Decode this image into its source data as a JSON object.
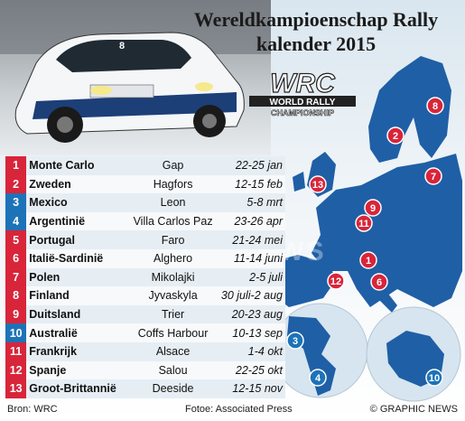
{
  "title": {
    "line1": "Wereldkampioenschap Rally",
    "line2": "kalender 2015"
  },
  "logo": {
    "wrc": "WRC",
    "line1": "WORLD RALLY",
    "line2": "CHAMPIONSHIP"
  },
  "photo": {
    "number": "8"
  },
  "rallies": [
    {
      "num": "1",
      "country": "Monte Carlo",
      "venue": "Gap",
      "dates": "22-25 jan"
    },
    {
      "num": "2",
      "country": "Zweden",
      "venue": "Hagfors",
      "dates": "12-15 feb"
    },
    {
      "num": "3",
      "country": "Mexico",
      "venue": "Leon",
      "dates": "5-8 mrt"
    },
    {
      "num": "4",
      "country": "Argentinië",
      "venue": "Villa Carlos Paz",
      "dates": "23-26 apr"
    },
    {
      "num": "5",
      "country": "Portugal",
      "venue": "Faro",
      "dates": "21-24 mei"
    },
    {
      "num": "6",
      "country": "Italië-Sardinië",
      "venue": "Alghero",
      "dates": "11-14 juni"
    },
    {
      "num": "7",
      "country": "Polen",
      "venue": "Mikolajki",
      "dates": "2-5 juli"
    },
    {
      "num": "8",
      "country": "Finland",
      "venue": "Jyvaskyla",
      "dates": "30 juli-2 aug"
    },
    {
      "num": "9",
      "country": "Duitsland",
      "venue": "Trier",
      "dates": "20-23 aug"
    },
    {
      "num": "10",
      "country": "Australië",
      "venue": "Coffs Harbour",
      "dates": "10-13 sep"
    },
    {
      "num": "11",
      "country": "Frankrijk",
      "venue": "Alsace",
      "dates": "1-4 okt"
    },
    {
      "num": "12",
      "country": "Spanje",
      "venue": "Salou",
      "dates": "22-25 okt"
    },
    {
      "num": "13",
      "country": "Groot-Brittannië",
      "venue": "Deeside",
      "dates": "12-15 nov"
    }
  ],
  "footer": {
    "source": "Bron: WRC",
    "credit": "Fotoe: Associated Press",
    "copyright": "© GRAPHIC NEWS"
  },
  "watermark": "GRAPHIC NEWS",
  "colors": {
    "europe_marker": "#d8253a",
    "overseas_marker": "#1d73b8",
    "land": "#1f5fa6",
    "sea": "#d6e5f0"
  }
}
